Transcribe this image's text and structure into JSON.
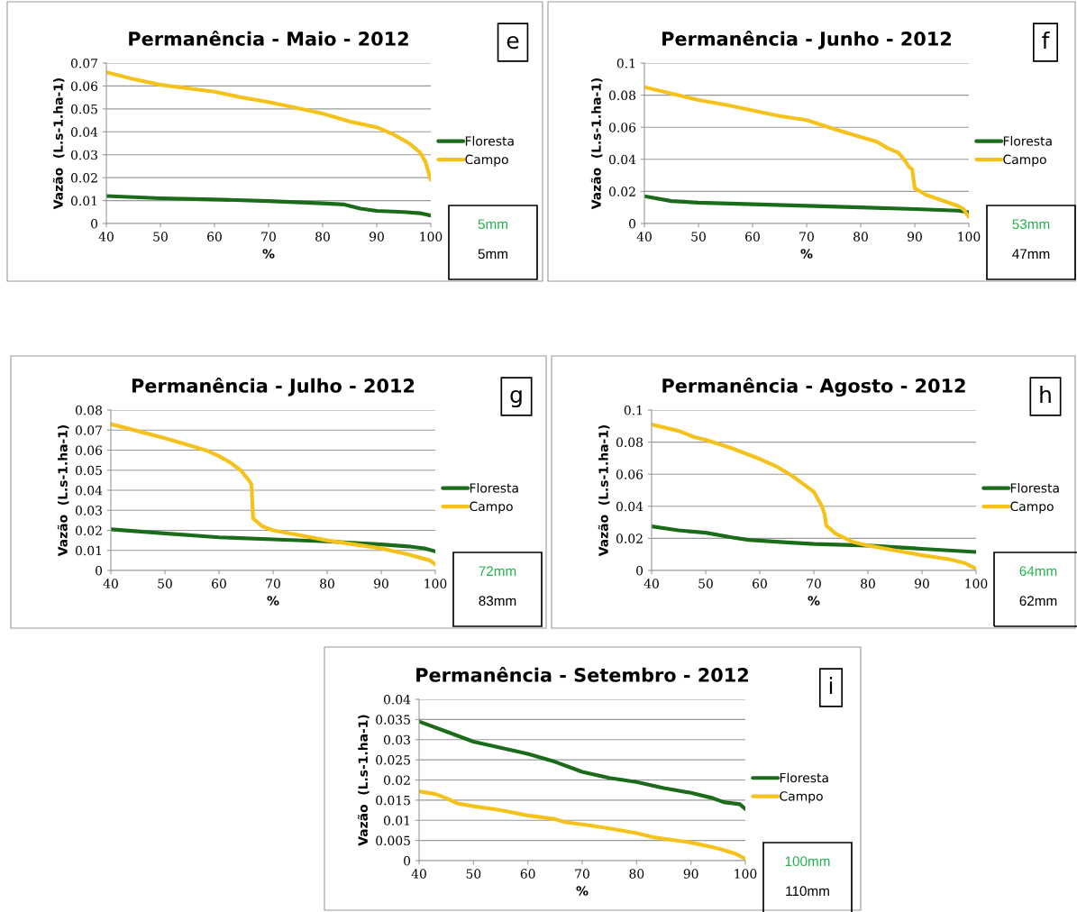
{
  "chart_data": [
    {
      "type": "line",
      "title": "Permanência - Maio - 2012",
      "xlabel": "%",
      "ylabel": "Vazão  (L.s-1.ha-1)",
      "xlim": [
        40,
        100
      ],
      "xticks": [
        40,
        50,
        60,
        70,
        80,
        90,
        100
      ],
      "ylim": [
        0,
        0.07
      ],
      "yticks": [
        0,
        0.01,
        0.02,
        0.03,
        0.04,
        0.05,
        0.06,
        0.07
      ],
      "grid": "y",
      "legend": "right",
      "annotations": [
        "e",
        "5mm",
        "5mm"
      ],
      "series": [
        {
          "name": "Floresta",
          "color": "#1a6b1a",
          "x": [
            40,
            50,
            60,
            70,
            80,
            84,
            87,
            90,
            95,
            98,
            100
          ],
          "values": [
            0.012,
            0.011,
            0.0105,
            0.0098,
            0.0088,
            0.0083,
            0.0065,
            0.0055,
            0.005,
            0.0045,
            0.0035
          ]
        },
        {
          "name": "Campo",
          "color": "#f5c21b",
          "x": [
            40,
            45,
            50,
            55,
            60,
            65,
            70,
            75,
            80,
            85,
            90,
            93,
            96,
            98,
            99,
            100
          ],
          "values": [
            0.066,
            0.063,
            0.0605,
            0.059,
            0.0575,
            0.055,
            0.053,
            0.0505,
            0.048,
            0.0445,
            0.042,
            0.039,
            0.035,
            0.031,
            0.027,
            0.019
          ]
        }
      ]
    },
    {
      "type": "line",
      "title": "Permanência - Junho - 2012",
      "xlabel": "%",
      "ylabel": "Vazão  (L.s-1.ha-1)",
      "xlim": [
        40,
        100
      ],
      "xticks": [
        40,
        50,
        60,
        70,
        80,
        90,
        100
      ],
      "ylim": [
        0,
        0.1
      ],
      "yticks": [
        0,
        0.02,
        0.04,
        0.06,
        0.08,
        0.1
      ],
      "grid": "y",
      "legend": "right",
      "annotations": [
        "f",
        "53mm",
        "47mm"
      ],
      "series": [
        {
          "name": "Floresta",
          "color": "#1a6b1a",
          "x": [
            40,
            45,
            50,
            60,
            70,
            80,
            90,
            98,
            100
          ],
          "values": [
            0.017,
            0.014,
            0.013,
            0.012,
            0.011,
            0.01,
            0.009,
            0.008,
            0.007
          ]
        },
        {
          "name": "Campo",
          "color": "#f5c21b",
          "x": [
            40,
            45,
            50,
            55,
            60,
            65,
            70,
            75,
            80,
            83,
            85,
            87,
            88,
            89,
            89.5,
            90,
            92,
            95,
            98,
            99,
            100
          ],
          "values": [
            0.085,
            0.081,
            0.077,
            0.074,
            0.0705,
            0.067,
            0.0645,
            0.059,
            0.054,
            0.051,
            0.047,
            0.044,
            0.04,
            0.035,
            0.034,
            0.022,
            0.018,
            0.0145,
            0.011,
            0.009,
            0.004
          ]
        }
      ]
    },
    {
      "type": "line",
      "title": "Permanência - Julho - 2012",
      "xlabel": "%",
      "ylabel": "Vazão  (L.s-1.ha-1)",
      "xlim": [
        40,
        100
      ],
      "xticks": [
        40,
        50,
        60,
        70,
        80,
        90,
        100
      ],
      "ylim": [
        0,
        0.08
      ],
      "yticks": [
        0,
        0.01,
        0.02,
        0.03,
        0.04,
        0.05,
        0.06,
        0.07,
        0.08
      ],
      "grid": "y",
      "legend": "right",
      "annotations": [
        "g",
        "72mm",
        "83mm"
      ],
      "series": [
        {
          "name": "Floresta",
          "color": "#1a6b1a",
          "x": [
            40,
            50,
            60,
            70,
            80,
            90,
            95,
            98,
            100
          ],
          "values": [
            0.0205,
            0.0185,
            0.0165,
            0.0155,
            0.0145,
            0.013,
            0.012,
            0.011,
            0.0095
          ]
        },
        {
          "name": "Campo",
          "color": "#f5c21b",
          "x": [
            40,
            45,
            50,
            55,
            58,
            60,
            62,
            64,
            65.5,
            66,
            66.3,
            68,
            70,
            75,
            80,
            85,
            90,
            95,
            99,
            100
          ],
          "values": [
            0.073,
            0.0695,
            0.066,
            0.062,
            0.0595,
            0.057,
            0.054,
            0.05,
            0.045,
            0.043,
            0.026,
            0.022,
            0.02,
            0.0175,
            0.015,
            0.013,
            0.011,
            0.008,
            0.005,
            0.003
          ]
        }
      ]
    },
    {
      "type": "line",
      "title": "Permanência - Agosto - 2012",
      "xlabel": "%",
      "ylabel": "Vazão  (L.s-1.ha-1)",
      "xlim": [
        40,
        100
      ],
      "xticks": [
        40,
        50,
        60,
        70,
        80,
        90,
        100
      ],
      "ylim": [
        0,
        0.1
      ],
      "yticks": [
        0,
        0.02,
        0.04,
        0.06,
        0.08,
        0.1
      ],
      "grid": "y",
      "legend": "right",
      "annotations": [
        "h",
        "64mm",
        "62mm"
      ],
      "series": [
        {
          "name": "Floresta",
          "color": "#1a6b1a",
          "x": [
            40,
            45,
            50,
            55,
            58,
            65,
            70,
            80,
            90,
            100
          ],
          "values": [
            0.0275,
            0.025,
            0.0235,
            0.0205,
            0.019,
            0.0175,
            0.0165,
            0.0155,
            0.0135,
            0.0115
          ]
        },
        {
          "name": "Campo",
          "color": "#f5c21b",
          "x": [
            40,
            45,
            48,
            50,
            55,
            60,
            63,
            66,
            68,
            70,
            71.5,
            72,
            72.3,
            74,
            77,
            80,
            85,
            90,
            95,
            98,
            100
          ],
          "values": [
            0.091,
            0.087,
            0.083,
            0.0815,
            0.076,
            0.0695,
            0.065,
            0.059,
            0.054,
            0.049,
            0.04,
            0.035,
            0.028,
            0.023,
            0.018,
            0.0155,
            0.0125,
            0.0095,
            0.007,
            0.0045,
            0.001
          ]
        }
      ]
    },
    {
      "type": "line",
      "title": "Permanência - Setembro - 2012",
      "xlabel": "%",
      "ylabel": "Vazão  (L.s-1.ha-1)",
      "xlim": [
        40,
        100
      ],
      "xticks": [
        40,
        50,
        60,
        70,
        80,
        90,
        100
      ],
      "ylim": [
        0,
        0.04
      ],
      "yticks": [
        0,
        0.005,
        0.01,
        0.015,
        0.02,
        0.025,
        0.03,
        0.035,
        0.04
      ],
      "grid": "y",
      "legend": "right",
      "annotations": [
        "i",
        "100mm",
        "110mm"
      ],
      "series": [
        {
          "name": "Floresta",
          "color": "#1a6b1a",
          "x": [
            40,
            45,
            50,
            55,
            60,
            65,
            68,
            70,
            75,
            80,
            85,
            90,
            94,
            96,
            99,
            100
          ],
          "values": [
            0.0345,
            0.032,
            0.0295,
            0.028,
            0.0265,
            0.0245,
            0.023,
            0.022,
            0.0205,
            0.0195,
            0.018,
            0.0168,
            0.0155,
            0.0145,
            0.014,
            0.0128
          ]
        },
        {
          "name": "Campo",
          "color": "#f5c21b",
          "x": [
            40,
            43,
            45,
            47,
            50,
            55,
            60,
            65,
            67,
            70,
            75,
            80,
            83,
            90,
            95,
            98,
            100
          ],
          "values": [
            0.0172,
            0.0165,
            0.0155,
            0.0142,
            0.0135,
            0.0125,
            0.0112,
            0.0103,
            0.0095,
            0.009,
            0.008,
            0.0068,
            0.0058,
            0.0045,
            0.003,
            0.0018,
            0.0005
          ]
        }
      ]
    }
  ]
}
